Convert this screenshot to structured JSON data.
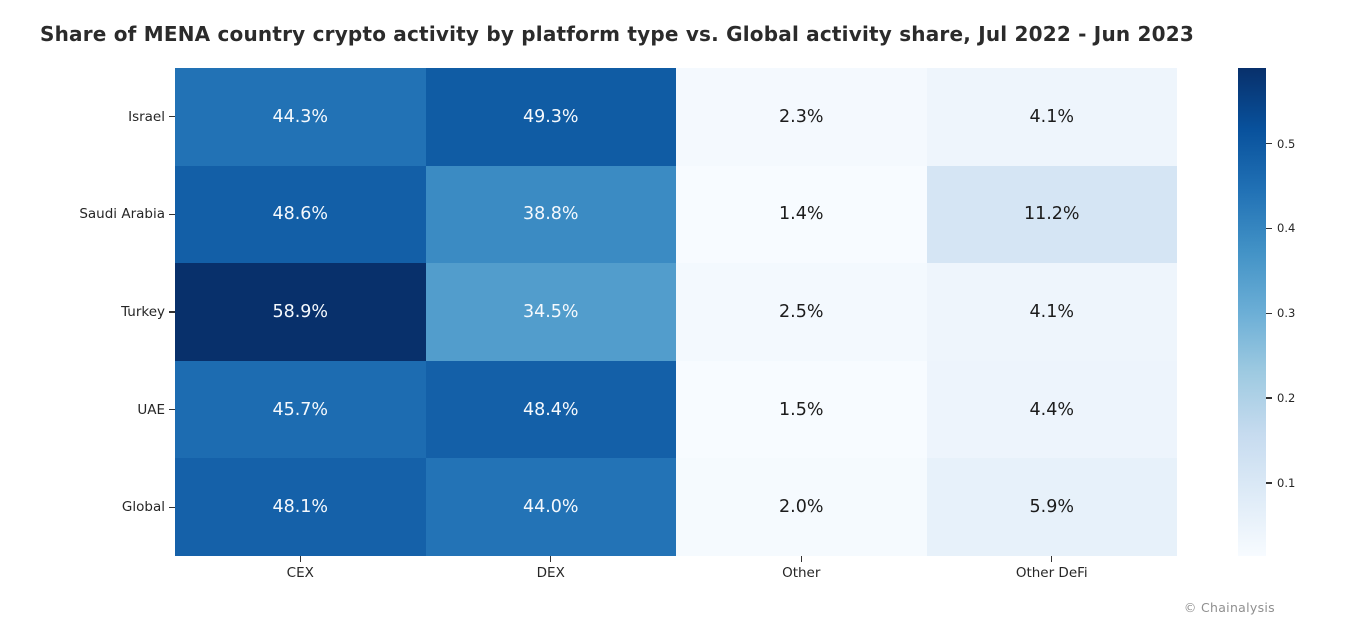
{
  "title": "Share of MENA country crypto activity by platform type vs. Global activity share, Jul 2022 - Jun 2023",
  "attribution": "© Chainalysis",
  "colors": {
    "background": "#ffffff",
    "title_text": "#2b2b2b",
    "axis_text": "#262626",
    "tick_mark": "#333333",
    "attribution_text": "#8f8f8f",
    "cell_text_light": "#f5f9fd",
    "cell_text_dark": "#1c1c1c"
  },
  "chart_data": {
    "type": "heatmap",
    "title": "Share of MENA country crypto activity by platform type vs. Global activity share, Jul 2022 - Jun 2023",
    "columns": [
      "CEX",
      "DEX",
      "Other",
      "Other DeFi"
    ],
    "rows": [
      "Israel",
      "Saudi Arabia",
      "Turkey",
      "UAE",
      "Global"
    ],
    "values_percent": [
      [
        44.3,
        49.3,
        2.3,
        4.1
      ],
      [
        48.6,
        38.8,
        1.4,
        11.2
      ],
      [
        58.9,
        34.5,
        2.5,
        4.1
      ],
      [
        45.7,
        48.4,
        1.5,
        4.4
      ],
      [
        48.1,
        44.0,
        2.0,
        5.9
      ]
    ],
    "cell_labels": [
      [
        "44.3%",
        "49.3%",
        "2.3%",
        "4.1%"
      ],
      [
        "48.6%",
        "38.8%",
        "1.4%",
        "11.2%"
      ],
      [
        "58.9%",
        "34.5%",
        "2.5%",
        "4.1%"
      ],
      [
        "45.7%",
        "48.4%",
        "1.5%",
        "4.4%"
      ],
      [
        "48.1%",
        "44.0%",
        "2.0%",
        "5.9%"
      ]
    ],
    "cell_colors": [
      [
        "#2272b5",
        "#105ca4",
        "#f4f9fe",
        "#eef5fc"
      ],
      [
        "#135fa7",
        "#3b8bc3",
        "#f7fbff",
        "#d5e5f4"
      ],
      [
        "#08306b",
        "#529dcc",
        "#f3f9fe",
        "#eef5fc"
      ],
      [
        "#1d6cb1",
        "#1460a8",
        "#f7fbff",
        "#edf4fc"
      ],
      [
        "#1561a9",
        "#2373b6",
        "#f5fafe",
        "#e7f1fa"
      ]
    ],
    "colormap": "Blues",
    "grid": false,
    "legend_position": "right",
    "colorbar": {
      "vmin": 0.014,
      "vmax": 0.589,
      "tick_labels": [
        "0.5",
        "0.4",
        "0.3",
        "0.2",
        "0.1"
      ],
      "tick_values": [
        0.5,
        0.4,
        0.3,
        0.2,
        0.1
      ],
      "gradient_top_to_bottom": [
        "#08306b",
        "#08519c",
        "#2171b5",
        "#4292c6",
        "#6baed6",
        "#9ecae1",
        "#c6dbef",
        "#deebf7",
        "#f7fbff"
      ]
    }
  }
}
